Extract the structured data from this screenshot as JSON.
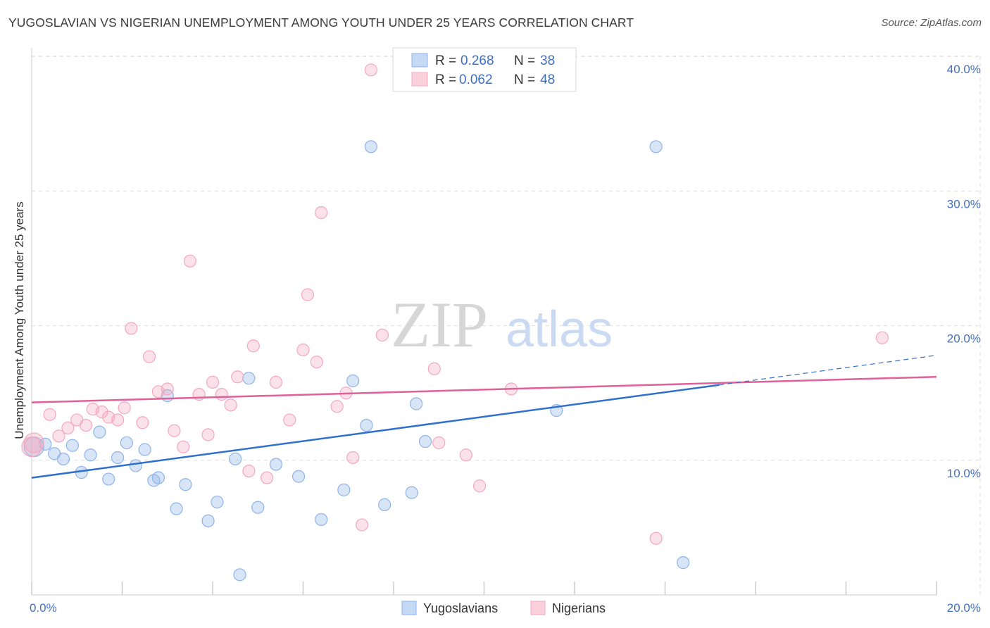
{
  "title": "YUGOSLAVIAN VS NIGERIAN UNEMPLOYMENT AMONG YOUTH UNDER 25 YEARS CORRELATION CHART",
  "source": "Source: ZipAtlas.com",
  "watermark": {
    "zip": "ZIP",
    "atlas": "atlas"
  },
  "chart_data": {
    "type": "scatter",
    "title": "YUGOSLAVIAN VS NIGERIAN UNEMPLOYMENT AMONG YOUTH UNDER 25 YEARS CORRELATION CHART",
    "xlabel": "",
    "ylabel": "Unemployment Among Youth under 25 years",
    "xlim": [
      0,
      20
    ],
    "ylim": [
      0,
      40
    ],
    "x_tick_labels": [
      {
        "value": 0,
        "label": "0.0%"
      },
      {
        "value": 20,
        "label": "20.0%"
      }
    ],
    "y_tick_labels": [
      {
        "value": 10,
        "label": "10.0%"
      },
      {
        "value": 20,
        "label": "20.0%"
      },
      {
        "value": 30,
        "label": "30.0%"
      },
      {
        "value": 40,
        "label": "40.0%"
      }
    ],
    "legend": [
      {
        "r_label": "R = ",
        "r_value": "0.268",
        "n_label": "N = ",
        "n_value": "38"
      },
      {
        "r_label": "R = ",
        "r_value": "0.062",
        "n_label": "N = ",
        "n_value": "48"
      }
    ],
    "series": [
      {
        "name": "Yugoslavians",
        "color": "#8fb4e8",
        "line_color": "#2f6fce",
        "trend": {
          "x0": 0,
          "y0": 8.7,
          "x1": 15.2,
          "y1": 15.6,
          "dash_to_x": 20,
          "dash_to_y": 17.8
        },
        "points": [
          [
            0.05,
            11.0
          ],
          [
            0.3,
            11.2
          ],
          [
            0.5,
            10.5
          ],
          [
            0.7,
            10.1
          ],
          [
            0.9,
            11.1
          ],
          [
            1.1,
            9.1
          ],
          [
            1.3,
            10.4
          ],
          [
            1.5,
            12.1
          ],
          [
            1.7,
            8.6
          ],
          [
            1.9,
            10.2
          ],
          [
            2.1,
            11.3
          ],
          [
            2.3,
            9.6
          ],
          [
            2.5,
            10.8
          ],
          [
            2.7,
            8.5
          ],
          [
            2.8,
            8.7
          ],
          [
            3.0,
            14.8
          ],
          [
            3.2,
            6.4
          ],
          [
            3.4,
            8.2
          ],
          [
            3.9,
            5.5
          ],
          [
            4.1,
            6.9
          ],
          [
            4.5,
            10.1
          ],
          [
            4.6,
            1.5
          ],
          [
            4.8,
            16.1
          ],
          [
            5.0,
            6.5
          ],
          [
            5.4,
            9.7
          ],
          [
            5.9,
            8.8
          ],
          [
            6.4,
            5.6
          ],
          [
            6.9,
            7.8
          ],
          [
            7.1,
            15.9
          ],
          [
            7.4,
            12.6
          ],
          [
            7.5,
            33.3
          ],
          [
            7.8,
            6.7
          ],
          [
            8.4,
            7.6
          ],
          [
            8.5,
            14.2
          ],
          [
            8.7,
            11.4
          ],
          [
            11.6,
            13.7
          ],
          [
            13.8,
            33.3
          ],
          [
            14.4,
            2.4
          ]
        ]
      },
      {
        "name": "Nigerians",
        "color": "#f4a8c0",
        "line_color": "#e0609a",
        "trend": {
          "x0": 0,
          "y0": 14.3,
          "x1": 20,
          "y1": 16.2
        },
        "points": [
          [
            0.05,
            11.3
          ],
          [
            0.4,
            13.4
          ],
          [
            0.6,
            11.8
          ],
          [
            0.8,
            12.4
          ],
          [
            1.0,
            13.0
          ],
          [
            1.2,
            12.6
          ],
          [
            1.35,
            13.8
          ],
          [
            1.55,
            13.6
          ],
          [
            1.7,
            13.2
          ],
          [
            1.9,
            13.0
          ],
          [
            2.05,
            13.9
          ],
          [
            2.2,
            19.8
          ],
          [
            2.45,
            12.8
          ],
          [
            2.6,
            17.7
          ],
          [
            2.8,
            15.1
          ],
          [
            3.0,
            15.3
          ],
          [
            3.15,
            12.2
          ],
          [
            3.35,
            11.0
          ],
          [
            3.5,
            24.8
          ],
          [
            3.7,
            14.9
          ],
          [
            3.9,
            11.9
          ],
          [
            4.0,
            15.8
          ],
          [
            4.2,
            14.9
          ],
          [
            4.4,
            14.1
          ],
          [
            4.55,
            16.2
          ],
          [
            4.8,
            9.2
          ],
          [
            4.9,
            18.5
          ],
          [
            5.2,
            8.7
          ],
          [
            5.4,
            15.8
          ],
          [
            5.7,
            13.0
          ],
          [
            6.0,
            18.2
          ],
          [
            6.1,
            22.3
          ],
          [
            6.3,
            17.3
          ],
          [
            6.4,
            28.4
          ],
          [
            6.75,
            14.0
          ],
          [
            6.95,
            15.0
          ],
          [
            7.1,
            10.2
          ],
          [
            7.3,
            5.2
          ],
          [
            7.5,
            39.0
          ],
          [
            7.75,
            19.3
          ],
          [
            8.9,
            16.8
          ],
          [
            9.0,
            11.3
          ],
          [
            9.6,
            10.4
          ],
          [
            9.9,
            8.1
          ],
          [
            10.6,
            15.3
          ],
          [
            13.8,
            4.2
          ],
          [
            18.8,
            19.1
          ],
          [
            0.0,
            11.0
          ]
        ]
      }
    ]
  }
}
